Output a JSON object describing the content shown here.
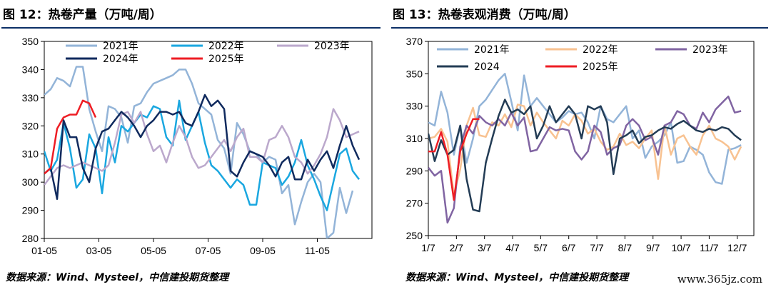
{
  "watermark": "www.365jz.com",
  "charts": [
    {
      "title": "图 12：热卷产量（万吨/周）",
      "source": "数据来源：Wind、Mysteel，中信建投期货整理",
      "chart_data": {
        "type": "line",
        "ylim": [
          280,
          350
        ],
        "yticks": [
          280,
          290,
          300,
          310,
          320,
          330,
          340,
          350
        ],
        "xlim": [
          0,
          51
        ],
        "xtick_positions": [
          0,
          8.5,
          17,
          25.5,
          34,
          42.5
        ],
        "xtick_labels": [
          "01-05",
          "03-05",
          "05-05",
          "07-05",
          "09-05",
          "11-05"
        ],
        "legend_rows": [
          [
            "2021年",
            "2022年",
            "2023年"
          ],
          [
            "2024年",
            "2025年"
          ]
        ],
        "series": [
          {
            "name": "2021年",
            "color": "#93b4d8",
            "width": 2.5,
            "values": [
              331,
              333,
              337,
              336,
              334,
              341,
              341,
              326,
              318,
              311,
              327,
              326,
              323,
              314,
              327,
              328,
              332,
              335,
              336,
              337,
              338,
              340,
              340,
              335,
              328,
              326,
              324,
              315,
              312,
              303,
              321,
              317,
              311,
              310,
              307,
              309,
              308,
              296,
              299,
              285,
              293,
              300,
              303,
              300,
              280,
              282,
              298,
              289,
              297
            ]
          },
          {
            "name": "2022年",
            "color": "#1aa7e0",
            "width": 2.5,
            "values": [
              311,
              304,
              308,
              321,
              312,
              298,
              301,
              317,
              312,
              296,
              316,
              307,
              320,
              318,
              321,
              324,
              323,
              327,
              326,
              316,
              313,
              329,
              315,
              320,
              325,
              314,
              306,
              304,
              301,
              298,
              301,
              299,
              292,
              292,
              307,
              306,
              305,
              299,
              302,
              307,
              315,
              306,
              301,
              295,
              290,
              300,
              310,
              312,
              304,
              301
            ]
          },
          {
            "name": "2023年",
            "color": "#bba8cc",
            "width": 2.5,
            "values": [
              299,
              302,
              305,
              306,
              305,
              306,
              307,
              306,
              305,
              304,
              306,
              314,
              324,
              325,
              321,
              325,
              317,
              311,
              313,
              307,
              314,
              320,
              316,
              309,
              305,
              306,
              309,
              312,
              315,
              311,
              316,
              319,
              309,
              309,
              307,
              315,
              316,
              320,
              316,
              309,
              307,
              303,
              306,
              310,
              316,
              326,
              322,
              316,
              317,
              318
            ]
          },
          {
            "name": "2024年",
            "color": "#102a5e",
            "width": 2.5,
            "values": [
              303,
              305,
              294,
              322,
              316,
              316,
              305,
              300,
              312,
              318,
              319,
              322,
              325,
              323,
              320,
              316,
              320,
              322,
              325,
              325,
              324,
              325,
              321,
              320,
              325,
              331,
              327,
              329,
              326,
              304,
              302,
              307,
              311,
              310,
              309,
              306,
              302,
              307,
              309,
              301,
              301,
              308,
              304,
              308,
              311,
              305,
              313,
              320,
              313,
              308
            ]
          },
          {
            "name": "2025年",
            "color": "#ee1d24",
            "width": 2.5,
            "values": [
              303,
              305,
              319,
              323,
              324,
              324,
              329,
              328,
              323
            ]
          }
        ]
      }
    },
    {
      "title": "图 13：热卷表观消费（万吨/周）",
      "source": "数据来源：Wind、Mysteel，中信建投期货整理",
      "chart_data": {
        "type": "line",
        "ylim": [
          250,
          370
        ],
        "yticks": [
          250,
          270,
          290,
          310,
          330,
          350,
          370
        ],
        "xlim": [
          0,
          51
        ],
        "xtick_positions": [
          0,
          4.4,
          8.8,
          13.2,
          17.6,
          22,
          26.4,
          30.8,
          35.2,
          39.6,
          44,
          48.4
        ],
        "xtick_labels": [
          "1/7",
          "2/7",
          "3/7",
          "4/7",
          "5/7",
          "6/7",
          "7/7",
          "8/7",
          "9/7",
          "10/7",
          "11/7",
          "12/7"
        ],
        "legend_rows": [
          [
            "2021年",
            "2022年",
            "2023年"
          ],
          [
            "2024",
            "2025年"
          ]
        ],
        "series": [
          {
            "name": "2021年",
            "color": "#93b4d8",
            "width": 2.5,
            "values": [
              320,
              318,
              339,
              326,
              300,
              318,
              295,
              310,
              330,
              334,
              340,
              346,
              350,
              333,
              315,
              349,
              330,
              335,
              330,
              325,
              320,
              323,
              327,
              325,
              326,
              320,
              310,
              330,
              322,
              320,
              325,
              330,
              310,
              315,
              298,
              305,
              308,
              312,
              320,
              295,
              296,
              305,
              303,
              300,
              289,
              283,
              282,
              303,
              304,
              306
            ]
          },
          {
            "name": "2022年",
            "color": "#f8c291",
            "width": 2.5,
            "values": [
              310,
              311,
              316,
              308,
              275,
              291,
              318,
              329,
              312,
              311,
              320,
              318,
              325,
              317,
              331,
              330,
              318,
              326,
              320,
              315,
              310,
              321,
              318,
              325,
              321,
              313,
              316,
              308,
              303,
              305,
              313,
              306,
              308,
              304,
              310,
              315,
              285,
              318,
              300,
              310,
              312,
              305,
              300,
              312,
              318,
              310,
              308,
              305,
              297,
              305
            ]
          },
          {
            "name": "2023年",
            "color": "#8064a2",
            "width": 2.5,
            "values": [
              292,
              287,
              290,
              258,
              267,
              305,
              318,
              313,
              324,
              320,
              318,
              322,
              318,
              326,
              318,
              323,
              302,
              303,
              310,
              317,
              315,
              316,
              315,
              302,
              297,
              302,
              318,
              314,
              300,
              304,
              306,
              318,
              322,
              318,
              309,
              311,
              300,
              318,
              320,
              327,
              325,
              318,
              316,
              326,
              320,
              328,
              332,
              336,
              326,
              327
            ]
          },
          {
            "name": "2024",
            "color": "#233c55",
            "width": 2.5,
            "values": [
              313,
              296,
              309,
              300,
              303,
              318,
              285,
              266,
              265,
              295,
              310,
              324,
              334,
              326,
              328,
              325,
              330,
              310,
              318,
              330,
              320,
              325,
              330,
              325,
              310,
              330,
              328,
              330,
              320,
              288,
              310,
              312,
              315,
              307,
              311,
              312,
              315,
              317,
              316,
              319,
              321,
              318,
              315,
              314,
              316,
              315,
              317,
              316,
              312,
              309
            ]
          },
          {
            "name": "2025年",
            "color": "#ee1d24",
            "width": 2.5,
            "values": [
              302,
              302,
              314,
              300,
              272,
              302,
              313,
              322,
              322
            ]
          }
        ]
      }
    }
  ]
}
